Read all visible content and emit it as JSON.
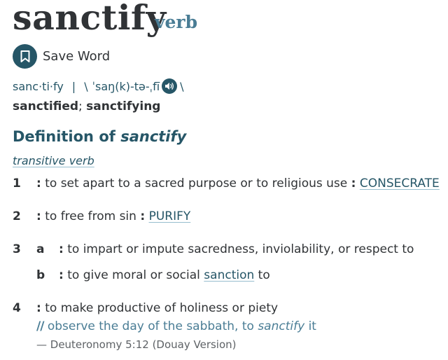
{
  "entry": {
    "headword": "sanctify",
    "part_of_speech": "verb",
    "save_word_label": "Save Word",
    "syllables": "sanc·ti·fy",
    "pron_separator": "|",
    "pron_open": "\\",
    "pronunciation": "ˈsaŋ(k)-tə-ˌfī",
    "pron_close": "\\",
    "inflection_1": "sanctified",
    "inflection_sep": ";",
    "inflection_2": "sanctifying"
  },
  "definition": {
    "heading_prefix": "Definition of",
    "heading_word": "sanctify",
    "function_label": "transitive verb",
    "colon": ":",
    "senses": [
      {
        "num": "1",
        "text": "to set apart to a sacred purpose or to religious use",
        "xref": "CONSECRATE"
      },
      {
        "num": "2",
        "text": "to free from sin",
        "xref": "PURIFY"
      },
      {
        "num": "3",
        "letter": "a",
        "text": "to impart or impute sacredness, inviolability, or respect to"
      },
      {
        "letter": "b",
        "text_before": "to give moral or social",
        "link": "sanction",
        "text_after": "to"
      },
      {
        "num": "4",
        "text": "to make productive of holiness or piety"
      }
    ],
    "example": {
      "marker": "//",
      "text_before": "observe the day of the sabbath, to",
      "italic_word": "sanctify",
      "text_after": "it"
    },
    "citation": "— Deuteronomy 5:12 (Douay Version)"
  },
  "icons": {
    "save": "bookmark-icon",
    "audio": "speaker-icon"
  },
  "colors": {
    "accent": "#265667",
    "pos": "#4a7d95",
    "text": "#303336",
    "underline": "#97bece"
  }
}
